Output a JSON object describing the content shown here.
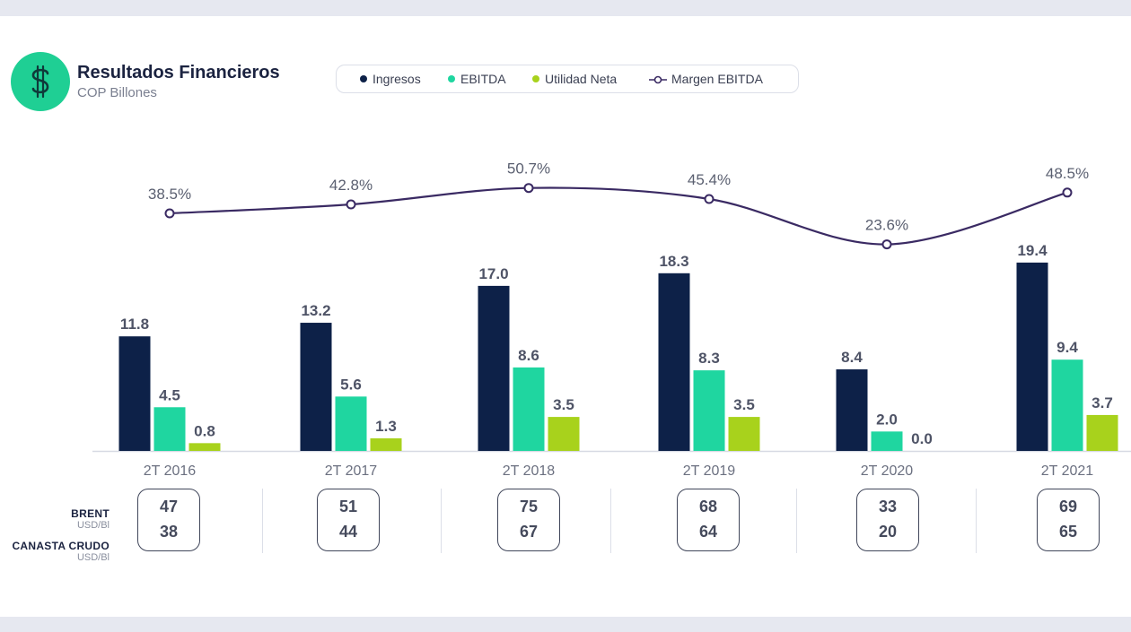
{
  "header": {
    "title": "Resultados Financieros",
    "subtitle": "COP Billones"
  },
  "legend": {
    "ingresos": "Ingresos",
    "ebitda": "EBITDA",
    "utilidad": "Utilidad Neta",
    "margen": "Margen EBITDA"
  },
  "colors": {
    "ingresos": "#0d2148",
    "ebitda": "#1fd6a0",
    "utilidad": "#a8d21c",
    "margen": "#3a2a63"
  },
  "icons": {
    "logo": "dollar-icon"
  },
  "chart_data": {
    "type": "bar",
    "title": "Resultados Financieros",
    "subtitle": "COP Billones",
    "categories": [
      "2T 2016",
      "2T 2017",
      "2T 2018",
      "2T 2019",
      "2T 2020",
      "2T 2021"
    ],
    "series": [
      {
        "name": "Ingresos",
        "values": [
          11.8,
          13.2,
          17.0,
          18.3,
          8.4,
          19.4
        ],
        "labels": [
          "11.8",
          "13.2",
          "17.0",
          "18.3",
          "8.4",
          "19.4"
        ]
      },
      {
        "name": "EBITDA",
        "values": [
          4.5,
          5.6,
          8.6,
          8.3,
          2.0,
          9.4
        ],
        "labels": [
          "4.5",
          "5.6",
          "8.6",
          "8.3",
          "2.0",
          "9.4"
        ]
      },
      {
        "name": "Utilidad Neta",
        "values": [
          0.8,
          1.3,
          3.5,
          3.5,
          0.0,
          3.7
        ],
        "labels": [
          "0.8",
          "1.3",
          "3.5",
          "3.5",
          "0.0",
          "3.7"
        ]
      }
    ],
    "line_series": {
      "name": "Margen EBITDA",
      "values": [
        38.5,
        42.8,
        50.7,
        45.4,
        23.6,
        48.5
      ],
      "labels": [
        "38.5%",
        "42.8%",
        "50.7%",
        "45.4%",
        "23.6%",
        "48.5%"
      ]
    },
    "ylim": [
      0,
      20
    ],
    "line_ylim": [
      20,
      55
    ]
  },
  "prices": {
    "brent_label": "BRENT",
    "brent_unit": "USD/Bl",
    "canasta_label": "CANASTA CRUDO",
    "canasta_unit": "USD/Bl",
    "brent": [
      "47",
      "51",
      "75",
      "68",
      "33",
      "69"
    ],
    "canasta": [
      "38",
      "44",
      "67",
      "64",
      "20",
      "65"
    ]
  }
}
